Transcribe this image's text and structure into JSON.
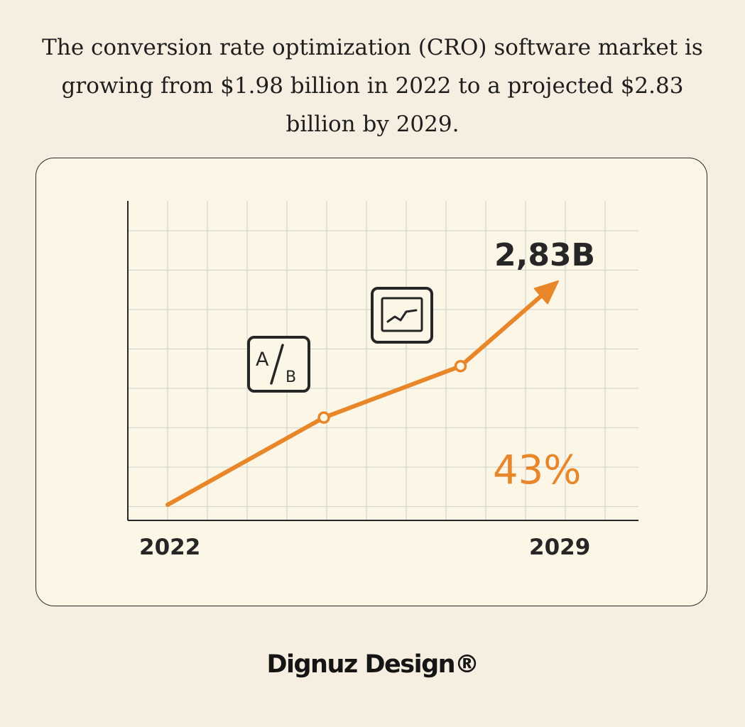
{
  "headline": "The conversion rate optimization (CRO) software market is growing from $1.98 billion in 2022 to a projected $2.83 billion by 2029.",
  "brand": "Dignuz Design®",
  "colors": {
    "background": "#f6eee0",
    "card": "#fcf6e6",
    "accent": "#e8862a",
    "ink": "#262626",
    "grid": "#d5d8d0"
  },
  "icons": [
    "ab-test-icon",
    "analytics-chart-icon"
  ],
  "chart_data": {
    "type": "line",
    "grid": true,
    "x_labels": [
      "2022",
      "2029"
    ],
    "end_label": "2,83B",
    "growth_label": "43%",
    "icon_text": {
      "a": "A",
      "b": "B"
    },
    "points": [
      {
        "x": 0,
        "y": 0
      },
      {
        "x": 0.4,
        "y": 0.39
      },
      {
        "x": 0.75,
        "y": 0.62
      },
      {
        "x": 1,
        "y": 1
      }
    ]
  }
}
